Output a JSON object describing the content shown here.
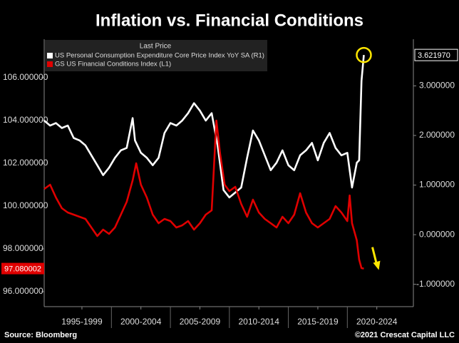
{
  "chart_data": {
    "type": "line",
    "title": "Inflation vs. Financial Conditions",
    "legend_title": "Last Price",
    "source": "Source: Bloomberg",
    "copyright": "©2021 Crescat Capital LLC",
    "xlim": [
      1994.3,
      2025.6
    ],
    "xticks": [
      {
        "value": 1997.5,
        "label": "1995-1999"
      },
      {
        "value": 2002.5,
        "label": "2000-2004"
      },
      {
        "value": 2007.5,
        "label": "2005-2009"
      },
      {
        "value": 2012.5,
        "label": "2010-2014"
      },
      {
        "value": 2017.5,
        "label": "2015-2019"
      },
      {
        "value": 2022.5,
        "label": "2020-2024"
      }
    ],
    "ylim": [
      95.3,
      107.8
    ],
    "yticks": [
      {
        "value": 96,
        "label": "96.000000"
      },
      {
        "value": 98,
        "label": "98.000000"
      },
      {
        "value": 100,
        "label": "100.000000"
      },
      {
        "value": 102,
        "label": "102.000000"
      },
      {
        "value": 104,
        "label": "104.000000"
      },
      {
        "value": 106,
        "label": "106.000000"
      }
    ],
    "y2lim": [
      -1.45,
      3.94
    ],
    "y2ticks": [
      {
        "value": -1,
        "label": "-1.000000"
      },
      {
        "value": 0,
        "label": "0.000000"
      },
      {
        "value": 1,
        "label": "1.000000"
      },
      {
        "value": 2,
        "label": "2.000000"
      },
      {
        "value": 3,
        "label": "3.000000"
      }
    ],
    "series": [
      {
        "name": "US Personal Consumption Expenditure Core Price Index YoY SA  (R1)",
        "color": "#ffffff",
        "axis": "y2",
        "end_label": "3.621970",
        "x": [
          1994.3,
          1994.8,
          1995.3,
          1995.8,
          1996.3,
          1996.8,
          1997.3,
          1997.8,
          1998.3,
          1998.8,
          1999.3,
          1999.8,
          2000.3,
          2000.8,
          2001.3,
          2001.8,
          2002.0,
          2002.5,
          2003.0,
          2003.5,
          2004.0,
          2004.5,
          2005.0,
          2005.5,
          2006.0,
          2006.5,
          2007.0,
          2007.5,
          2008.0,
          2008.5,
          2009.0,
          2009.5,
          2010.0,
          2010.5,
          2011.0,
          2011.5,
          2012.0,
          2012.5,
          2013.0,
          2013.5,
          2014.0,
          2014.5,
          2015.0,
          2015.5,
          2016.0,
          2016.5,
          2017.0,
          2017.5,
          2018.0,
          2018.5,
          2019.0,
          2019.5,
          2020.0,
          2020.4,
          2020.8,
          2021.0,
          2021.2,
          2021.4
        ],
        "values": [
          2.3,
          2.2,
          2.25,
          2.15,
          2.2,
          1.95,
          1.9,
          1.8,
          1.6,
          1.4,
          1.2,
          1.35,
          1.55,
          1.7,
          1.75,
          2.35,
          1.9,
          1.65,
          1.55,
          1.4,
          1.55,
          2.05,
          2.25,
          2.2,
          2.3,
          2.45,
          2.65,
          2.5,
          2.3,
          2.45,
          1.8,
          0.9,
          0.75,
          0.85,
          0.95,
          1.55,
          2.1,
          1.9,
          1.6,
          1.3,
          1.45,
          1.7,
          1.4,
          1.3,
          1.6,
          1.7,
          1.85,
          1.5,
          1.85,
          2.05,
          1.75,
          1.6,
          1.65,
          0.95,
          1.45,
          1.5,
          3.1,
          3.62197
        ]
      },
      {
        "name": "GS US Financial Conditions Index  (L1)",
        "color": "#e00000",
        "axis": "y",
        "end_label": "97.080002",
        "x": [
          1994.3,
          1994.8,
          1995.3,
          1995.8,
          1996.3,
          1996.8,
          1997.3,
          1997.8,
          1998.3,
          1998.8,
          1999.3,
          1999.8,
          2000.3,
          2000.8,
          2001.3,
          2001.8,
          2002.1,
          2002.5,
          2003.0,
          2003.5,
          2004.0,
          2004.5,
          2005.0,
          2005.5,
          2006.0,
          2006.5,
          2007.0,
          2007.5,
          2008.0,
          2008.5,
          2008.9,
          2009.2,
          2009.6,
          2010.0,
          2010.5,
          2011.0,
          2011.5,
          2012.0,
          2012.5,
          2013.0,
          2013.5,
          2014.0,
          2014.5,
          2015.0,
          2015.5,
          2016.0,
          2016.5,
          2017.0,
          2017.5,
          2018.0,
          2018.5,
          2019.0,
          2019.5,
          2020.0,
          2020.2,
          2020.4,
          2020.8,
          2021.0,
          2021.2,
          2021.4
        ],
        "values": [
          100.8,
          101.0,
          100.4,
          99.9,
          99.7,
          99.6,
          99.5,
          99.4,
          99.0,
          98.6,
          98.9,
          98.7,
          99.0,
          99.6,
          100.2,
          101.2,
          102.0,
          101.0,
          100.4,
          99.6,
          99.2,
          99.4,
          99.3,
          99.0,
          99.1,
          99.3,
          98.9,
          99.2,
          99.6,
          99.8,
          104.0,
          102.5,
          101.0,
          100.7,
          100.9,
          100.1,
          99.5,
          100.3,
          99.7,
          99.4,
          99.2,
          99.0,
          99.5,
          99.2,
          99.6,
          100.6,
          99.7,
          99.2,
          99.0,
          99.2,
          99.4,
          100.0,
          99.7,
          99.3,
          100.5,
          99.2,
          98.4,
          97.5,
          97.1,
          97.08
        ]
      }
    ]
  }
}
